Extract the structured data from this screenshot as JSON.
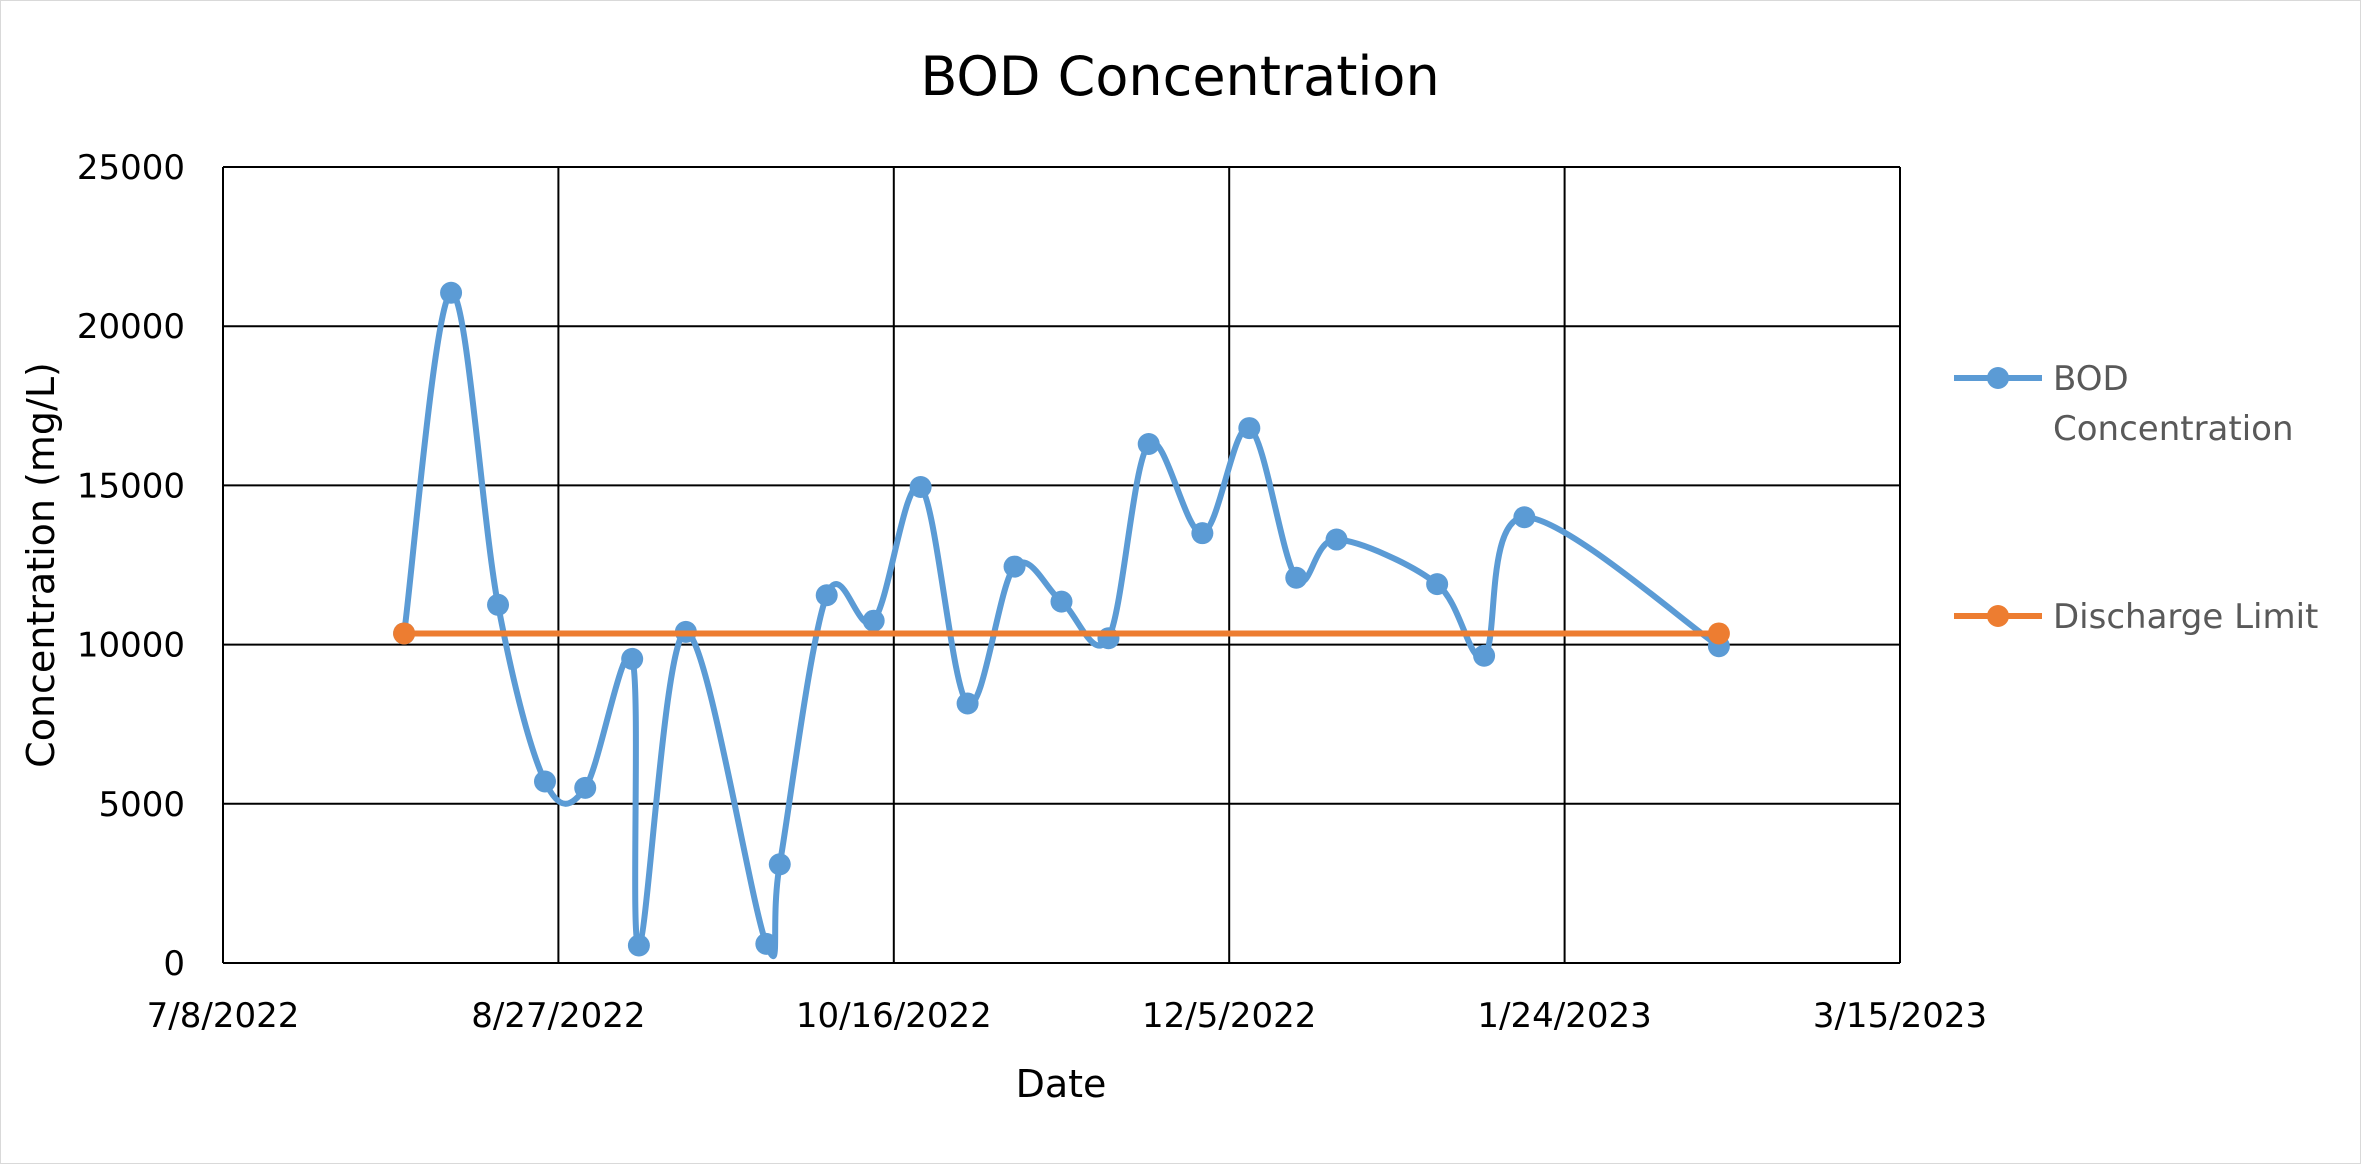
{
  "chart_data": {
    "type": "line",
    "title": "BOD Concentration",
    "xlabel": "Date",
    "ylabel": "Concentration (mg/L)",
    "x_ticks": [
      "7/8/2022",
      "8/27/2022",
      "10/16/2022",
      "12/5/2022",
      "1/24/2023",
      "3/15/2023"
    ],
    "xlim": [
      "2022-07-08",
      "2023-03-15"
    ],
    "y_ticks": [
      0,
      5000,
      10000,
      15000,
      20000,
      25000
    ],
    "ylim": [
      0,
      25000
    ],
    "grid": true,
    "legend_position": "right",
    "series": [
      {
        "name": "BOD Concentration",
        "color": "#5b9bd5",
        "smooth": true,
        "points": [
          {
            "x": "2022-08-04",
            "y": 10350
          },
          {
            "x": "2022-08-11",
            "y": 21050
          },
          {
            "x": "2022-08-18",
            "y": 11250
          },
          {
            "x": "2022-08-25",
            "y": 5700
          },
          {
            "x": "2022-08-31",
            "y": 5500
          },
          {
            "x": "2022-09-07",
            "y": 9550
          },
          {
            "x": "2022-09-08",
            "y": 550
          },
          {
            "x": "2022-09-15",
            "y": 10400
          },
          {
            "x": "2022-09-27",
            "y": 600
          },
          {
            "x": "2022-09-29",
            "y": 3100
          },
          {
            "x": "2022-10-06",
            "y": 11550
          },
          {
            "x": "2022-10-13",
            "y": 10750
          },
          {
            "x": "2022-10-20",
            "y": 14950
          },
          {
            "x": "2022-10-27",
            "y": 8150
          },
          {
            "x": "2022-11-03",
            "y": 12450
          },
          {
            "x": "2022-11-10",
            "y": 11350
          },
          {
            "x": "2022-11-17",
            "y": 10200
          },
          {
            "x": "2022-11-23",
            "y": 16300
          },
          {
            "x": "2022-12-01",
            "y": 13500
          },
          {
            "x": "2022-12-08",
            "y": 16800
          },
          {
            "x": "2022-12-15",
            "y": 12100
          },
          {
            "x": "2022-12-21",
            "y": 13300
          },
          {
            "x": "2023-01-05",
            "y": 11900
          },
          {
            "x": "2023-01-12",
            "y": 9650
          },
          {
            "x": "2023-01-18",
            "y": 14000
          },
          {
            "x": "2023-02-16",
            "y": 9950
          }
        ]
      },
      {
        "name": "Discharge Limit",
        "color": "#ed7d31",
        "smooth": false,
        "points": [
          {
            "x": "2022-08-04",
            "y": 10350
          },
          {
            "x": "2023-02-16",
            "y": 10350
          }
        ]
      }
    ]
  }
}
